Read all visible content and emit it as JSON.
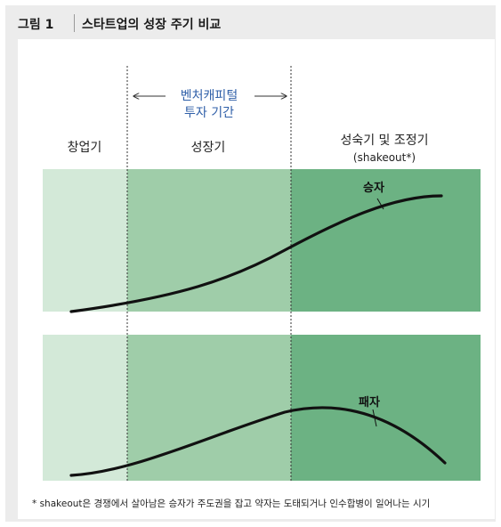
{
  "figure": {
    "label": "그림 1",
    "title": "스타트업의 성장 주기 비교"
  },
  "arrow": {
    "line1": "벤처캐피털",
    "line2": "투자 기간",
    "color": "#2f5fa8"
  },
  "phases": {
    "startup": "창업기",
    "growth": "성장기",
    "maturity_line1": "성숙기 및 조정기",
    "maturity_line2": "(shakeout*)"
  },
  "curves": {
    "winner_label": "승자",
    "loser_label": "패자"
  },
  "colors": {
    "startup_band": "#d3e9d8",
    "growth_band": "#9fcda9",
    "maturity_band": "#6cb283",
    "curve": "#111111"
  },
  "footnote": "* shakeout은 경쟁에서 살아남은 승자가 주도권을 잡고 약자는 도태되거나 인수합병이 일어나는 시기"
}
